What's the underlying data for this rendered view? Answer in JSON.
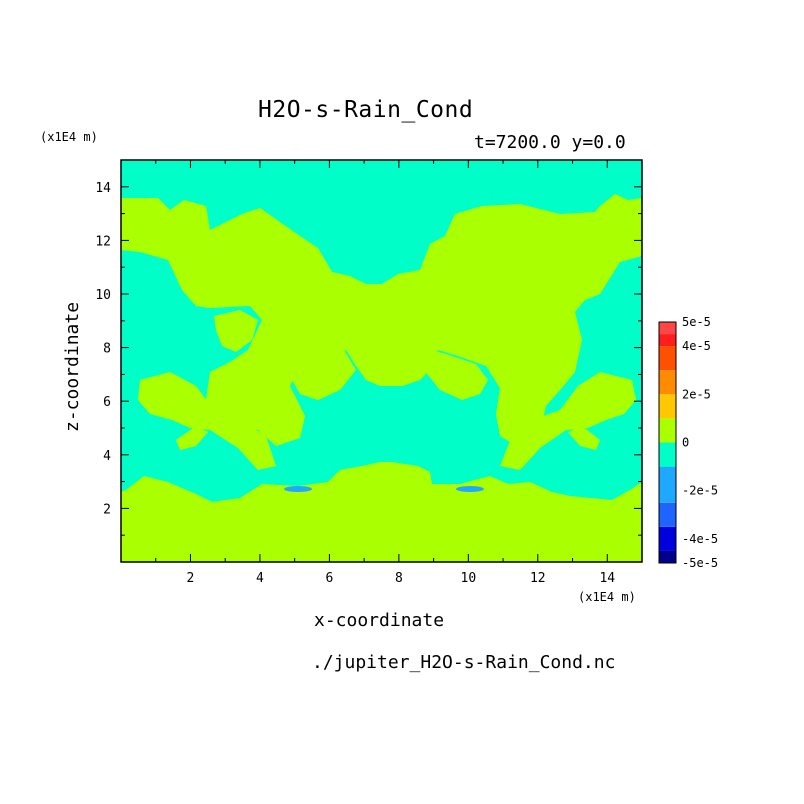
{
  "chart_data": {
    "type": "heatmap",
    "title": "H2O-s-Rain_Cond",
    "subtitle": "t=7200.0 y=0.0",
    "xlabel": "x-coordinate",
    "ylabel": "z-coordinate",
    "x_unit": "(x1E4 m)",
    "y_unit": "(x1E4 m)",
    "xlim": [
      0,
      15
    ],
    "ylim": [
      0,
      15
    ],
    "x_ticks": [
      2,
      4,
      6,
      8,
      10,
      12,
      14
    ],
    "y_ticks": [
      2,
      4,
      6,
      8,
      10,
      12,
      14
    ],
    "x_tick_labels": [
      "2",
      "4",
      "6",
      "8",
      "10",
      "12",
      "14"
    ],
    "y_tick_labels": [
      "2",
      "4",
      "6",
      "8",
      "10",
      "12",
      "14"
    ],
    "colorbar": {
      "levels": [
        {
          "from": -5e-05,
          "to": -4.5e-05,
          "color": "#00008b"
        },
        {
          "from": -4.5e-05,
          "to": -3.5e-05,
          "color": "#0000dd"
        },
        {
          "from": -3.5e-05,
          "to": -2.5e-05,
          "color": "#1e64ff"
        },
        {
          "from": -2.5e-05,
          "to": -1e-05,
          "color": "#1ea8ff"
        },
        {
          "from": -1e-05,
          "to": 0,
          "color": "#00ffc8"
        },
        {
          "from": 0,
          "to": 1e-05,
          "color": "#aaff00"
        },
        {
          "from": 1e-05,
          "to": 2e-05,
          "color": "#ffc800"
        },
        {
          "from": 2e-05,
          "to": 3e-05,
          "color": "#ff8c00"
        },
        {
          "from": 3e-05,
          "to": 4e-05,
          "color": "#ff5000"
        },
        {
          "from": 4e-05,
          "to": 4.5e-05,
          "color": "#ff1e1e"
        },
        {
          "from": 4.5e-05,
          "to": 5e-05,
          "color": "#ff4646"
        }
      ],
      "tick_labels": [
        "5e-5",
        "4e-5",
        "2e-5",
        "0",
        "-2e-5",
        "-4e-5",
        "-5e-5"
      ],
      "tick_values": [
        5e-05,
        4e-05,
        2e-05,
        0,
        -2e-05,
        -4e-05,
        -5e-05
      ]
    },
    "background_color": "#aaff00",
    "regions": {
      "negative_small": {
        "color": "#00ffc8",
        "description_value_range": [
          -1e-05,
          0
        ]
      },
      "negative_mid": {
        "color": "#1ea8ff",
        "description_value_range": [
          -2.5e-05,
          -1e-05
        ]
      }
    },
    "source": "./jupiter_H2O-s-Rain_Cond.nc"
  }
}
